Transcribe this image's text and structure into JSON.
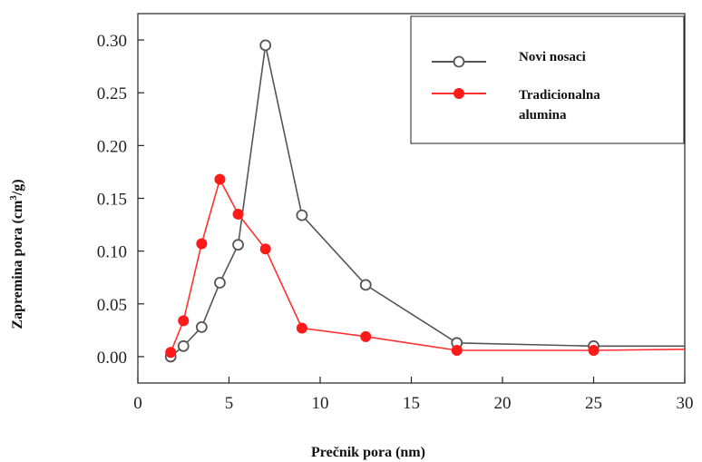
{
  "chart_data": {
    "type": "line",
    "xlabel": "Prečnik pora (nm)",
    "ylabel": "Zapremina pora (cm3/g)",
    "ylabel_parts": {
      "before": "Zapremina pora (cm",
      "sup": "3",
      "after": "/g)"
    },
    "xlim": [
      0,
      30
    ],
    "ylim": [
      -0.025,
      0.325
    ],
    "xticks": [
      "0",
      "5",
      "10",
      "15",
      "20",
      "25",
      "30"
    ],
    "yticks": [
      "0.00",
      "0.05",
      "0.10",
      "0.15",
      "0.20",
      "0.25",
      "0.30"
    ],
    "legend_position": "top-right",
    "legend": {
      "novi": "Novi nosaci",
      "trad_line1": "Tradicionalna",
      "trad_line2": "alumina"
    },
    "series": [
      {
        "name": "Novi nosaci",
        "marker": "open-circle",
        "color": "#555555",
        "x": [
          1.8,
          2.5,
          3.5,
          4.5,
          5.5,
          7.0,
          9.0,
          12.5,
          17.5,
          25.0,
          30.0
        ],
        "y": [
          0.0,
          0.01,
          0.028,
          0.07,
          0.106,
          0.295,
          0.134,
          0.068,
          0.013,
          0.01,
          0.01
        ]
      },
      {
        "name": "Tradicionalna alumina",
        "marker": "filled-circle",
        "color": "#ff3030",
        "x": [
          1.8,
          2.5,
          3.5,
          4.5,
          5.5,
          7.0,
          9.0,
          12.5,
          17.5,
          25.0,
          30.0
        ],
        "y": [
          0.004,
          0.034,
          0.107,
          0.168,
          0.135,
          0.102,
          0.027,
          0.019,
          0.006,
          0.006,
          0.007
        ]
      }
    ]
  }
}
